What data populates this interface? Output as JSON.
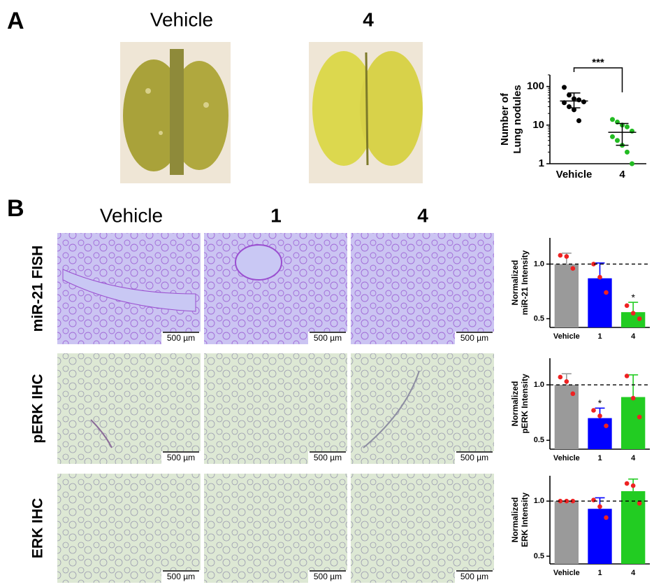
{
  "panel_a": {
    "label": "A",
    "columns": [
      "Vehicle",
      "4"
    ]
  },
  "panel_b": {
    "label": "B",
    "columns": [
      "Vehicle",
      "1",
      "4"
    ],
    "rows": [
      {
        "label": "miR-21 FISH",
        "scale_bars": [
          "500 µm",
          "500 µm",
          "500 µm"
        ]
      },
      {
        "label": "pERK IHC",
        "scale_bars": [
          "500 µm",
          "500 µm",
          "500 µm"
        ]
      },
      {
        "label": "ERK IHC",
        "scale_bars": [
          "500 µm",
          "500 µm",
          "500 µm"
        ]
      }
    ]
  },
  "chart_data": [
    {
      "type": "scatter",
      "categories": [
        "Vehicle",
        "4"
      ],
      "log_y": true,
      "ylim": [
        1,
        200
      ],
      "yticks": [
        1,
        10,
        100
      ],
      "ylabel": [
        "Number of",
        "Lung nodules"
      ],
      "groups": [
        {
          "color": "#000000",
          "values": [
            95,
            60,
            48,
            45,
            40,
            38,
            30,
            25,
            13
          ],
          "mean": 42,
          "ci": [
            28,
            68
          ]
        },
        {
          "color": "#22bb22",
          "values": [
            14,
            12,
            10,
            9,
            7,
            5,
            4,
            3,
            2,
            1
          ],
          "mean": 6.5,
          "ci": [
            3,
            11
          ]
        }
      ],
      "annotations": [
        {
          "text": "***",
          "from": "Vehicle",
          "to": "4"
        }
      ]
    },
    {
      "type": "bar",
      "categories": [
        "Vehicle",
        "1",
        "4"
      ],
      "colors": [
        "#9a9a9a",
        "#0000ff",
        "#22cc22"
      ],
      "values": [
        1.0,
        0.87,
        0.56
      ],
      "errors": [
        0.1,
        0.14,
        0.09
      ],
      "points": [
        [
          1.08,
          1.07,
          0.96
        ],
        [
          1.0,
          0.88,
          0.74
        ],
        [
          0.62,
          0.55,
          0.5
        ]
      ],
      "point_color": "#ee2222",
      "ylim": [
        0.42,
        1.24
      ],
      "yticks": [
        0.5,
        {
          "value": 1,
          "label": "1.0"
        }
      ],
      "reference_line": 1,
      "ylabel": [
        "Normalized",
        "miR-21 Intensity"
      ],
      "annotations": [
        {
          "text": "*",
          "x": "4"
        }
      ]
    },
    {
      "type": "bar",
      "categories": [
        "Vehicle",
        "1",
        "4"
      ],
      "colors": [
        "#9a9a9a",
        "#0000ff",
        "#22cc22"
      ],
      "values": [
        1.0,
        0.7,
        0.89
      ],
      "errors": [
        0.1,
        0.09,
        0.2
      ],
      "points": [
        [
          1.07,
          1.03,
          0.92
        ],
        [
          0.77,
          0.72,
          0.63
        ],
        [
          1.08,
          0.88,
          0.71
        ]
      ],
      "point_color": "#ee2222",
      "ylim": [
        0.42,
        1.24
      ],
      "yticks": [
        0.5,
        {
          "value": 1,
          "label": "1.0"
        }
      ],
      "reference_line": 1,
      "ylabel": [
        "Normalized",
        "pERK Intensity"
      ],
      "annotations": [
        {
          "text": "*",
          "x": "1"
        }
      ]
    },
    {
      "type": "bar",
      "categories": [
        "Vehicle",
        "1",
        "4"
      ],
      "colors": [
        "#9a9a9a",
        "#0000ff",
        "#22cc22"
      ],
      "values": [
        1.0,
        0.93,
        1.09
      ],
      "errors": [
        0,
        0.1,
        0.11
      ],
      "points": [
        [
          1.0,
          1.0,
          1.0
        ],
        [
          1.01,
          0.95,
          0.85
        ],
        [
          1.16,
          1.14,
          0.98
        ]
      ],
      "point_color": "#ee2222",
      "ylim": [
        0.43,
        1.23
      ],
      "yticks": [
        0.5,
        {
          "value": 1,
          "label": "1.0"
        }
      ],
      "reference_line": 1,
      "ylabel": [
        "Normalized",
        "ERK Intensity"
      ]
    }
  ]
}
